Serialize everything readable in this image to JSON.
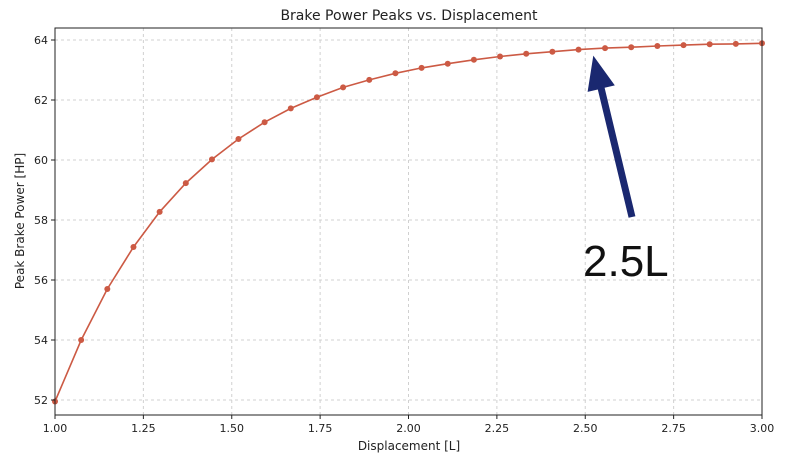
{
  "chart_data": {
    "type": "line",
    "title": "Brake Power Peaks vs. Displacement",
    "xlabel": "Displacement [L]",
    "ylabel": "Peak Brake Power [HP]",
    "xlim": [
      1.0,
      3.0
    ],
    "ylim": [
      51.5,
      64.4
    ],
    "xticks": [
      "1.00",
      "1.25",
      "1.50",
      "1.75",
      "2.00",
      "2.25",
      "2.50",
      "2.75",
      "3.00"
    ],
    "yticks": [
      "52",
      "54",
      "56",
      "58",
      "60",
      "62",
      "64"
    ],
    "grid": true,
    "series": [
      {
        "color": "#cc5a44",
        "x": [
          1.0,
          1.074,
          1.148,
          1.222,
          1.296,
          1.37,
          1.444,
          1.519,
          1.593,
          1.667,
          1.741,
          1.815,
          1.889,
          1.963,
          2.037,
          2.111,
          2.185,
          2.259,
          2.333,
          2.407,
          2.481,
          2.556,
          2.63,
          2.704,
          2.778,
          2.852,
          2.926,
          3.0
        ],
        "y": [
          51.95,
          54.0,
          55.7,
          57.1,
          58.27,
          59.23,
          60.02,
          60.7,
          61.26,
          61.72,
          62.09,
          62.42,
          62.67,
          62.89,
          63.07,
          63.21,
          63.34,
          63.45,
          63.54,
          63.61,
          63.68,
          63.73,
          63.76,
          63.8,
          63.83,
          63.86,
          63.87,
          63.89
        ]
      }
    ],
    "annotation": {
      "text": "2.5L",
      "target": [
        2.5,
        63.68
      ],
      "color": "#1a2870"
    }
  }
}
